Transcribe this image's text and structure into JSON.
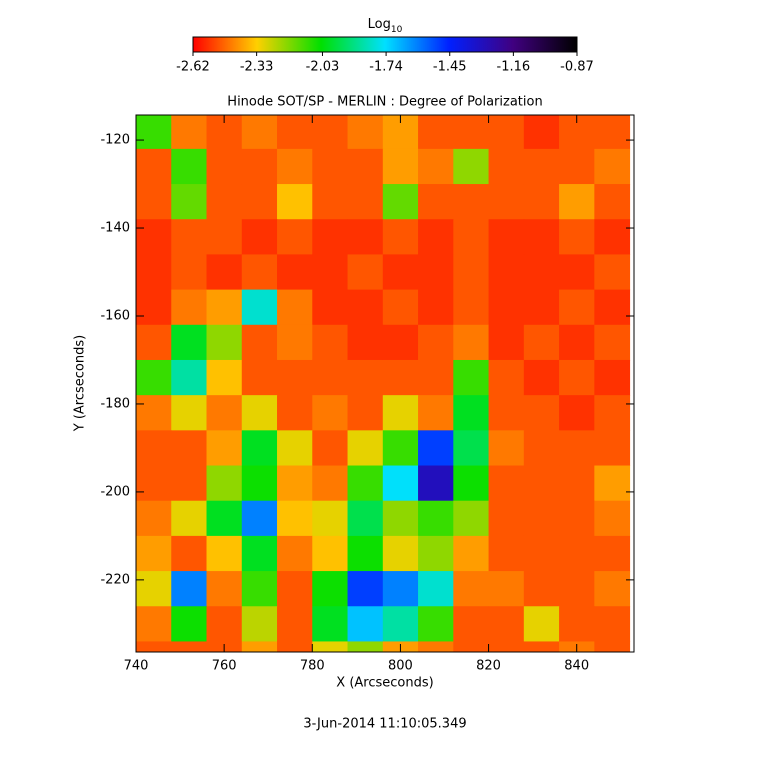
{
  "chart_data": {
    "type": "heatmap",
    "title": "Hinode SOT/SP - MERLIN : Degree of Polarization",
    "xlabel": "X (Arcseconds)",
    "ylabel": "Y (Arcseconds)",
    "footer": "3-Jun-2014 11:10:05.349",
    "colorbar_label": "Log",
    "colorbar_label_sub": "10",
    "colorbar_lim": [
      -2.62,
      -0.87
    ],
    "colorbar_ticks": [
      -2.62,
      -2.33,
      -2.03,
      -1.74,
      -1.45,
      -1.16,
      -0.87
    ],
    "colormap": [
      "#ff0000",
      "#ffd000",
      "#00e000",
      "#00e0ff",
      "#0020ff",
      "#400080",
      "#000000"
    ],
    "xlim": [
      740,
      853
    ],
    "ylim": [
      -236.4,
      -114.3
    ],
    "xticks": [
      740,
      760,
      780,
      800,
      820,
      840
    ],
    "yticks": [
      -120,
      -140,
      -160,
      -180,
      -200,
      -220
    ],
    "x": [
      744,
      752,
      760,
      768,
      776,
      784,
      792,
      800,
      808,
      816,
      824,
      832,
      840,
      848
    ],
    "y": [
      -118,
      -126,
      -134,
      -142,
      -150,
      -158,
      -166,
      -174,
      -182,
      -190,
      -198,
      -206,
      -214,
      -222,
      -230,
      -238
    ],
    "z": [
      [
        -2.1,
        -2.45,
        -2.5,
        -2.45,
        -2.5,
        -2.5,
        -2.45,
        -2.4,
        -2.5,
        -2.5,
        -2.5,
        -2.55,
        -2.5,
        -2.5
      ],
      [
        -2.5,
        -2.1,
        -2.5,
        -2.5,
        -2.45,
        -2.5,
        -2.5,
        -2.4,
        -2.45,
        -2.2,
        -2.5,
        -2.5,
        -2.5,
        -2.45
      ],
      [
        -2.5,
        -2.15,
        -2.5,
        -2.5,
        -2.35,
        -2.5,
        -2.5,
        -2.15,
        -2.5,
        -2.5,
        -2.5,
        -2.5,
        -2.4,
        -2.5
      ],
      [
        -2.55,
        -2.5,
        -2.5,
        -2.55,
        -2.5,
        -2.55,
        -2.55,
        -2.5,
        -2.55,
        -2.5,
        -2.55,
        -2.55,
        -2.5,
        -2.55
      ],
      [
        -2.55,
        -2.5,
        -2.55,
        -2.5,
        -2.55,
        -2.55,
        -2.5,
        -2.55,
        -2.55,
        -2.5,
        -2.55,
        -2.55,
        -2.55,
        -2.5
      ],
      [
        -2.55,
        -2.45,
        -2.4,
        -1.8,
        -2.45,
        -2.55,
        -2.55,
        -2.5,
        -2.55,
        -2.5,
        -2.55,
        -2.55,
        -2.5,
        -2.55
      ],
      [
        -2.5,
        -2.0,
        -2.2,
        -2.5,
        -2.45,
        -2.5,
        -2.55,
        -2.55,
        -2.5,
        -2.45,
        -2.55,
        -2.5,
        -2.55,
        -2.5
      ],
      [
        -2.1,
        -1.85,
        -2.35,
        -2.5,
        -2.5,
        -2.5,
        -2.5,
        -2.5,
        -2.5,
        -2.1,
        -2.5,
        -2.55,
        -2.5,
        -2.55
      ],
      [
        -2.45,
        -2.3,
        -2.45,
        -2.3,
        -2.5,
        -2.45,
        -2.5,
        -2.3,
        -2.45,
        -2.0,
        -2.5,
        -2.5,
        -2.55,
        -2.5
      ],
      [
        -2.5,
        -2.5,
        -2.4,
        -2.0,
        -2.3,
        -2.5,
        -2.3,
        -2.1,
        -1.5,
        -1.95,
        -2.45,
        -2.5,
        -2.5,
        -2.5
      ],
      [
        -2.5,
        -2.5,
        -2.2,
        -2.05,
        -2.4,
        -2.45,
        -2.1,
        -1.75,
        -1.3,
        -2.05,
        -2.5,
        -2.5,
        -2.5,
        -2.4
      ],
      [
        -2.45,
        -2.3,
        -2.0,
        -1.6,
        -2.35,
        -2.3,
        -1.95,
        -2.2,
        -2.1,
        -2.2,
        -2.5,
        -2.5,
        -2.5,
        -2.45
      ],
      [
        -2.4,
        -2.5,
        -2.35,
        -2.0,
        -2.45,
        -2.35,
        -2.05,
        -2.3,
        -2.2,
        -2.4,
        -2.5,
        -2.5,
        -2.5,
        -2.5
      ],
      [
        -2.3,
        -1.6,
        -2.45,
        -2.1,
        -2.5,
        -2.05,
        -1.5,
        -1.6,
        -1.8,
        -2.45,
        -2.45,
        -2.5,
        -2.5,
        -2.45
      ],
      [
        -2.45,
        -2.05,
        -2.5,
        -2.25,
        -2.5,
        -2.0,
        -1.7,
        -1.85,
        -2.1,
        -2.5,
        -2.5,
        -2.3,
        -2.5,
        -2.5
      ],
      [
        -2.5,
        -2.5,
        -2.5,
        -2.4,
        -2.5,
        -2.3,
        -2.2,
        -2.4,
        -2.45,
        -2.5,
        -2.5,
        -2.5,
        -2.45,
        -2.5
      ]
    ]
  }
}
